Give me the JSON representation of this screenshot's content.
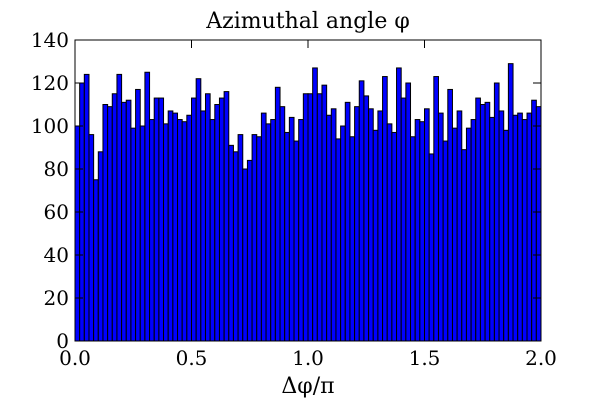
{
  "chart_data": {
    "type": "bar",
    "title": "Azimuthal angle φ",
    "xlabel": "Δφ/π",
    "ylabel": "",
    "xlim": [
      0.0,
      2.0
    ],
    "ylim": [
      0,
      140
    ],
    "xticks": [
      "0.0",
      "0.5",
      "1.0",
      "1.5",
      "2.0"
    ],
    "yticks": [
      "0",
      "20",
      "40",
      "60",
      "80",
      "100",
      "120",
      "140"
    ],
    "grid": false,
    "bar_color": "#0000ff",
    "edge_color": "#000000",
    "bin_width": 0.02,
    "values": [
      100,
      120,
      124,
      96,
      75,
      88,
      110,
      109,
      115,
      124,
      111,
      112,
      99,
      117,
      100,
      125,
      103,
      113,
      113,
      101,
      107,
      106,
      103,
      102,
      105,
      113,
      122,
      107,
      115,
      103,
      110,
      113,
      116,
      91,
      88,
      96,
      80,
      84,
      96,
      95,
      106,
      101,
      103,
      118,
      109,
      97,
      104,
      93,
      103,
      115,
      115,
      127,
      115,
      119,
      105,
      108,
      94,
      100,
      111,
      95,
      109,
      121,
      114,
      108,
      98,
      107,
      123,
      101,
      97,
      127,
      113,
      120,
      95,
      103,
      102,
      108,
      87,
      123,
      106,
      93,
      117,
      99,
      107,
      89,
      99,
      103,
      113,
      110,
      111,
      104,
      120,
      107,
      98,
      129,
      105,
      106,
      103,
      106,
      112,
      109
    ]
  }
}
